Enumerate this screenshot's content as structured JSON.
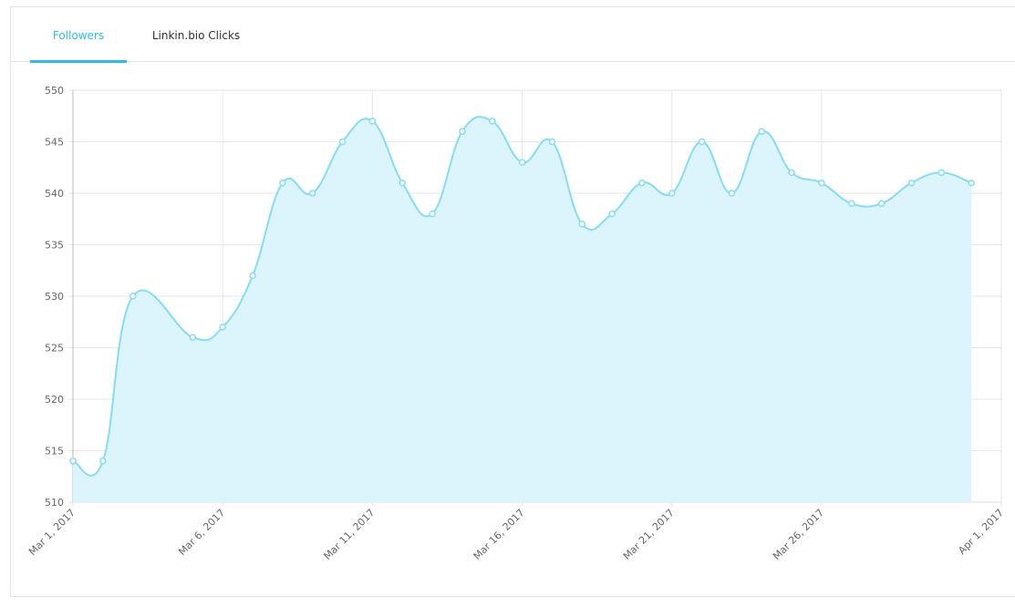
{
  "tabs": [
    {
      "label": "Followers",
      "active": true
    },
    {
      "label": "Linkin.bio Clicks",
      "active": false
    }
  ],
  "chart_data": {
    "type": "area",
    "x": [
      "2017-03-01",
      "2017-03-02",
      "2017-03-03",
      "2017-03-05",
      "2017-03-06",
      "2017-03-07",
      "2017-03-08",
      "2017-03-09",
      "2017-03-10",
      "2017-03-11",
      "2017-03-12",
      "2017-03-13",
      "2017-03-14",
      "2017-03-15",
      "2017-03-16",
      "2017-03-17",
      "2017-03-18",
      "2017-03-19",
      "2017-03-20",
      "2017-03-21",
      "2017-03-22",
      "2017-03-23",
      "2017-03-24",
      "2017-03-25",
      "2017-03-26",
      "2017-03-27",
      "2017-03-28",
      "2017-03-29",
      "2017-03-30",
      "2017-03-31"
    ],
    "series": [
      {
        "name": "Followers",
        "color": "#86dcf3",
        "fill": "#dcf4fc",
        "values": [
          514,
          514,
          530,
          526,
          527,
          532,
          541,
          540,
          545,
          547,
          541,
          538,
          546,
          547,
          543,
          545,
          537,
          538,
          541,
          540,
          545,
          540,
          546,
          542,
          541,
          539,
          539,
          541,
          542,
          541
        ]
      }
    ],
    "xlim": [
      "2017-03-01",
      "2017-04-01"
    ],
    "xticks": [
      {
        "value": "2017-03-01",
        "label": "Mar 1, 2017"
      },
      {
        "value": "2017-03-06",
        "label": "Mar 6, 2017"
      },
      {
        "value": "2017-03-11",
        "label": "Mar 11, 2017"
      },
      {
        "value": "2017-03-16",
        "label": "Mar 16, 2017"
      },
      {
        "value": "2017-03-21",
        "label": "Mar 21, 2017"
      },
      {
        "value": "2017-03-26",
        "label": "Mar 26, 2017"
      },
      {
        "value": "2017-04-01",
        "label": "Apr 1, 2017"
      }
    ],
    "ylim": [
      510,
      550
    ],
    "yticks": [
      510,
      515,
      520,
      525,
      530,
      535,
      540,
      545,
      550
    ],
    "grid": true
  }
}
